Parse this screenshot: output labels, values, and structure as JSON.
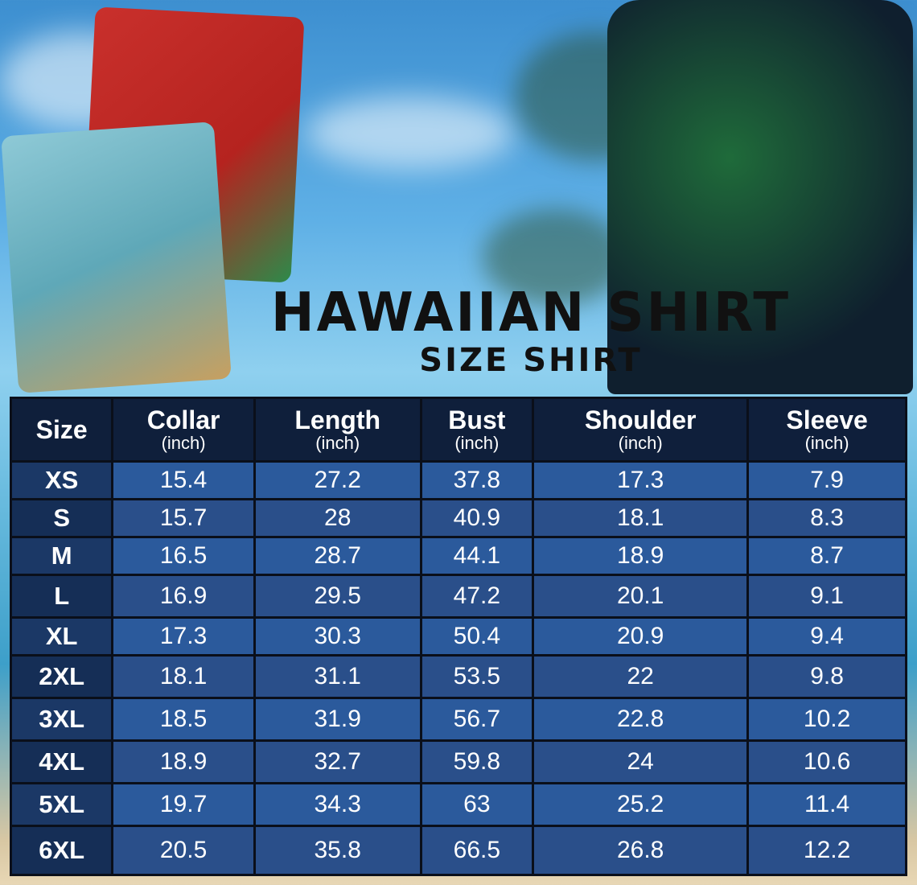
{
  "title": "HAWAIIAN SHIRT",
  "subtitle": "SIZE SHIRT",
  "table": {
    "headers": [
      {
        "label": "Size",
        "unit": ""
      },
      {
        "label": "Collar",
        "unit": "(inch)"
      },
      {
        "label": "Length",
        "unit": "(inch)"
      },
      {
        "label": "Bust",
        "unit": "(inch)"
      },
      {
        "label": "Shoulder",
        "unit": "(inch)"
      },
      {
        "label": "Sleeve",
        "unit": "(inch)"
      }
    ],
    "rows": [
      [
        "XS",
        "15.4",
        "27.2",
        "37.8",
        "17.3",
        "7.9"
      ],
      [
        "S",
        "15.7",
        "28",
        "40.9",
        "18.1",
        "8.3"
      ],
      [
        "M",
        "16.5",
        "28.7",
        "44.1",
        "18.9",
        "8.7"
      ],
      [
        "L",
        "16.9",
        "29.5",
        "47.2",
        "20.1",
        "9.1"
      ],
      [
        "XL",
        "17.3",
        "30.3",
        "50.4",
        "20.9",
        "9.4"
      ],
      [
        "2XL",
        "18.1",
        "31.1",
        "53.5",
        "22",
        "9.8"
      ],
      [
        "3XL",
        "18.5",
        "31.9",
        "56.7",
        "22.8",
        "10.2"
      ],
      [
        "4XL",
        "18.9",
        "32.7",
        "59.8",
        "24",
        "10.6"
      ],
      [
        "5XL",
        "19.7",
        "34.3",
        "63",
        "25.2",
        "11.4"
      ],
      [
        "6XL",
        "20.5",
        "35.8",
        "66.5",
        "26.8",
        "12.2"
      ]
    ]
  },
  "colors": {
    "header": "#0f1f3b",
    "size_cell": "#1b3866",
    "data_cell": "#2b5a9c"
  }
}
